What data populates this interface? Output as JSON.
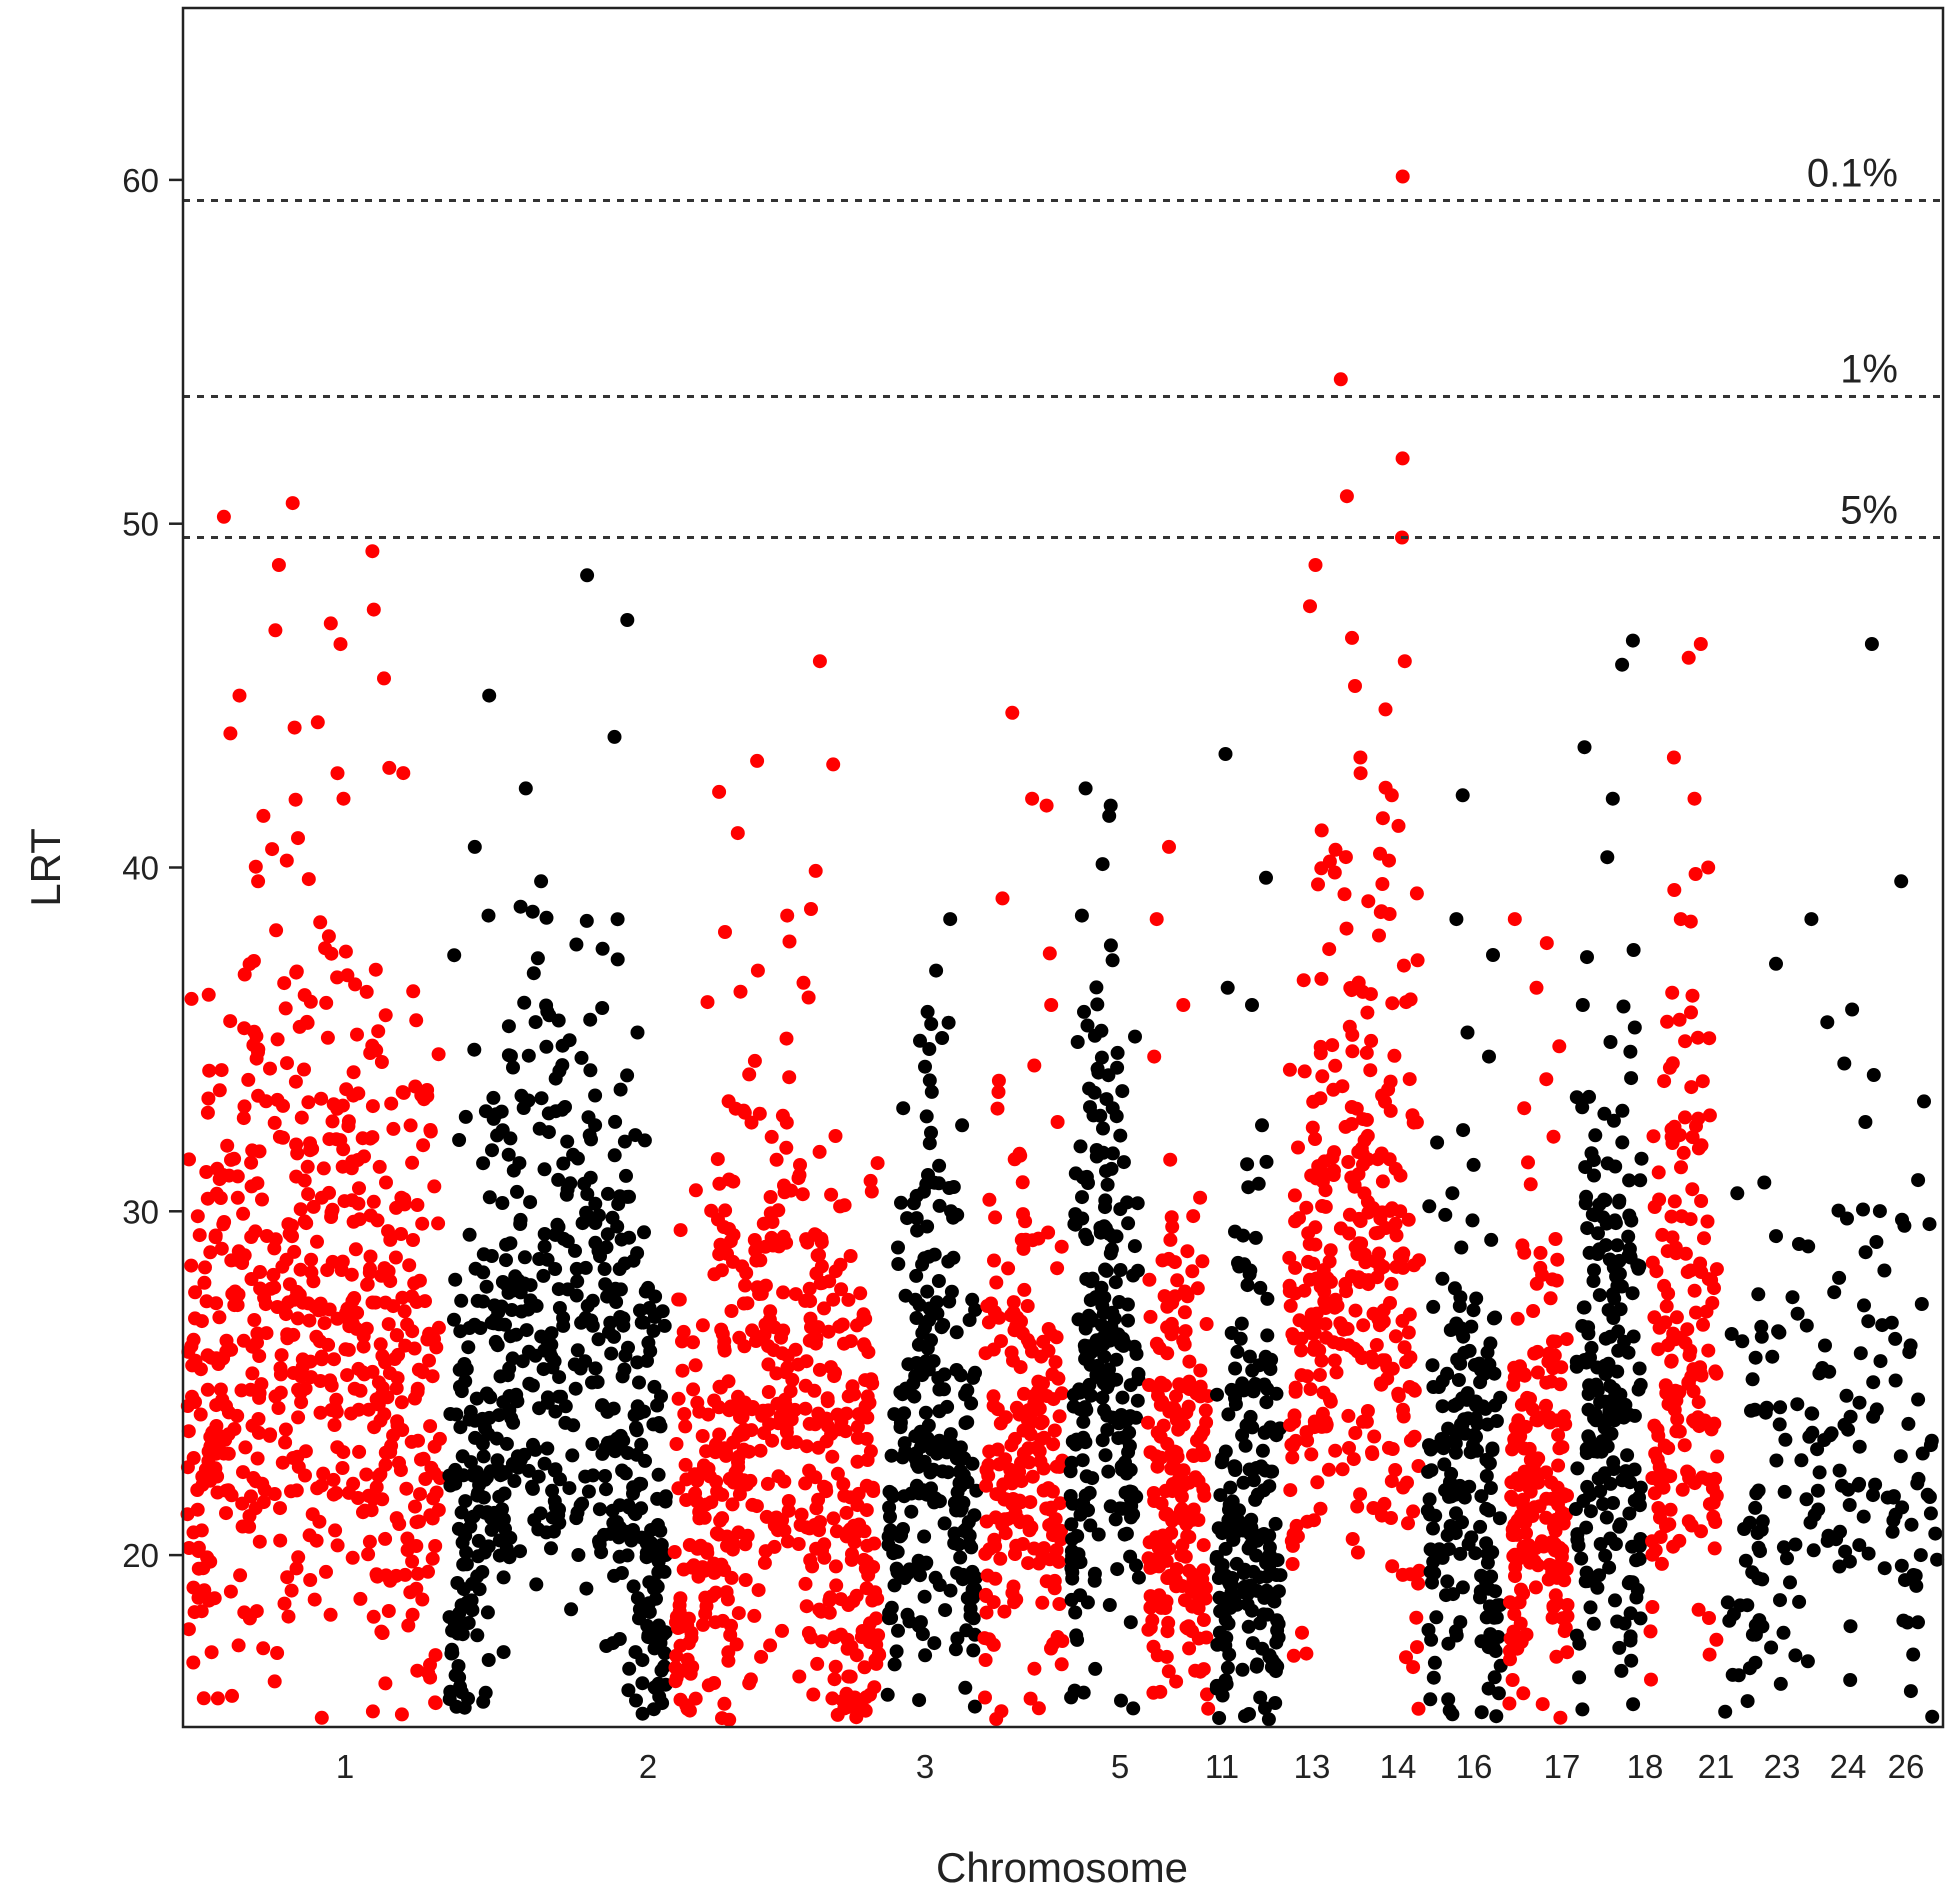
{
  "chart_data": {
    "type": "scatter",
    "subtype": "manhattan",
    "title": "",
    "xlabel": "Chromosome",
    "ylabel": "LRT",
    "ylim": [
      15,
      65
    ],
    "yticks": [
      20,
      30,
      40,
      50,
      60
    ],
    "ytick_labels": [
      "20",
      "30",
      "40",
      "50",
      "60"
    ],
    "grid": false,
    "colors": {
      "odd_group": "#ff0000",
      "even_group": "#000000"
    },
    "thresholds": [
      {
        "label": "0.1%",
        "value": 59.4
      },
      {
        "label": "1%",
        "value": 53.7
      },
      {
        "label": "5%",
        "value": 49.6
      }
    ],
    "chromosomes": [
      {
        "label": "1",
        "span": [
          0.0,
          0.186
        ],
        "color": "#ff0000",
        "base": [
          22,
          28
        ],
        "spread": 6.5,
        "count": 620,
        "peaks": [
          50.6,
          49.2,
          47.5,
          47.1,
          45.5,
          50.2,
          48.8,
          46.9,
          45.0,
          43.9,
          42.0,
          41.5,
          40.2,
          39.6,
          35.0,
          33.2
        ]
      },
      {
        "label": "2",
        "span": [
          0.186,
          0.36
        ],
        "color": "#000000",
        "base": [
          19,
          27
        ],
        "spread": 5.5,
        "count": 560,
        "peaks": [
          48.5,
          47.2,
          45.0,
          43.8,
          42.3,
          40.6,
          39.6,
          38.6,
          35.7,
          35.2,
          32.6,
          30.5
        ]
      },
      {
        "label": "3",
        "span": [
          0.36,
          0.515
        ],
        "color": "#ff0000",
        "base": [
          19,
          25
        ],
        "spread": 5.5,
        "count": 520,
        "peaks": [
          46.0,
          43.0,
          42.2,
          41.0,
          39.9,
          38.6,
          37.0,
          33.2,
          30.8
        ]
      },
      {
        "label": "5",
        "span": [
          0.515,
          0.582
        ],
        "color": "#000000",
        "base": [
          20,
          24
        ],
        "spread": 4.5,
        "count": 240,
        "peaks": [
          38.5,
          37.0,
          35.8,
          33.0,
          32.5,
          30.0
        ]
      },
      {
        "label": "11",
        "span": [
          0.582,
          0.634
        ],
        "color": "#ff0000",
        "base": [
          20,
          24
        ],
        "spread": 4.5,
        "count": 200,
        "peaks": [
          44.5,
          42.0,
          41.8,
          39.1,
          37.5,
          36.0,
          33.8
        ]
      },
      {
        "label": "13",
        "span": [
          0.634,
          0.69
        ],
        "color": "#000000",
        "base": [
          21,
          27
        ],
        "spread": 5.0,
        "count": 230,
        "peaks": [
          42.3,
          41.8,
          41.5,
          40.1,
          38.6,
          37.3,
          35.8
        ]
      },
      {
        "label": "14",
        "span": [
          0.69,
          0.735
        ],
        "color": "#ff0000",
        "base": [
          19,
          23
        ],
        "spread": 4.0,
        "count": 200,
        "peaks": [
          40.6,
          38.5,
          36.0,
          34.5,
          31.5
        ]
      },
      {
        "label": "16",
        "span": [
          0.735,
          0.78
        ],
        "color": "#000000",
        "base": [
          18,
          22
        ],
        "spread": 4.0,
        "count": 190,
        "peaks": [
          43.3,
          39.7,
          36.5,
          36.0,
          32.5,
          30.8
        ]
      },
      {
        "label": "17",
        "span": [
          0.78,
          0.846
        ],
        "color": "#ff0000",
        "base": [
          25,
          30
        ],
        "spread": 6.0,
        "count": 330,
        "peaks": [
          60.1,
          54.2,
          51.9,
          50.8,
          49.6,
          48.8,
          47.6,
          46.0,
          44.6,
          43.2,
          42.1,
          40.2
        ]
      },
      {
        "label": "18",
        "span": [
          0.846,
          0.886
        ],
        "color": "#000000",
        "base": [
          19,
          23
        ],
        "spread": 4.0,
        "count": 180,
        "peaks": [
          42.1,
          38.5,
          35.2,
          34.5,
          32.0
        ]
      },
      {
        "label": "21",
        "span": [
          0.886,
          0.928
        ],
        "color": "#ff0000",
        "base": [
          19,
          23
        ],
        "spread": 4.0,
        "count": 180,
        "peaks": [
          38.5,
          37.8,
          36.5,
          34.8,
          33.0
        ]
      },
      {
        "label": "23",
        "span": [
          0.928,
          0.97
        ],
        "color": "#000000",
        "base": [
          22,
          26
        ],
        "spread": 5.0,
        "count": 210,
        "peaks": [
          46.6,
          45.9,
          43.5,
          42.0,
          40.3,
          37.6,
          36.0
        ]
      },
      {
        "label": "24",
        "span": [
          0.97,
          1.0
        ],
        "color": "#ff0000",
        "base": [
          22,
          27
        ],
        "spread": 5.0,
        "count": 170,
        "peaks": [
          46.5,
          46.1,
          43.2,
          42.0,
          40.0,
          38.5
        ]
      },
      {
        "label": "26",
        "span": [
          1.0,
          1.04
        ],
        "color": "#000000",
        "base": [
          19,
          24
        ],
        "spread": 4.5,
        "count": 180,
        "peaks": [
          46.5,
          39.6,
          38.5,
          37.2,
          35.5,
          34.3
        ]
      }
    ]
  }
}
